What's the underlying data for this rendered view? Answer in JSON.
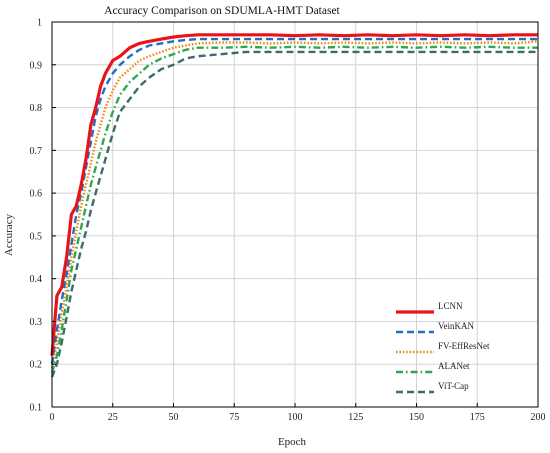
{
  "chart_data": {
    "type": "line",
    "title": "Accuracy Comparison on SDUMLA-HMT Dataset",
    "xlabel": "Epoch",
    "ylabel": "Accuracy",
    "xlim": [
      0,
      200
    ],
    "ylim": [
      0.1,
      1.0
    ],
    "xticks": [
      0,
      25,
      50,
      75,
      100,
      125,
      150,
      175,
      200
    ],
    "yticks": [
      0.1,
      0.2,
      0.3,
      0.4,
      0.5,
      0.6,
      0.7,
      0.8,
      0.9,
      1
    ],
    "grid": true,
    "legend_position": "bottom-right",
    "series": [
      {
        "name": "LCNN",
        "color": "#e8141a",
        "style": "solid",
        "x": [
          0,
          2,
          4,
          6,
          8,
          10,
          12,
          14,
          16,
          18,
          20,
          22,
          25,
          28,
          32,
          36,
          40,
          45,
          50,
          55,
          60,
          70,
          80,
          90,
          100,
          110,
          120,
          130,
          140,
          150,
          160,
          170,
          180,
          190,
          200
        ],
        "y": [
          0.22,
          0.36,
          0.38,
          0.45,
          0.55,
          0.57,
          0.62,
          0.68,
          0.76,
          0.8,
          0.85,
          0.88,
          0.91,
          0.92,
          0.94,
          0.95,
          0.955,
          0.96,
          0.965,
          0.968,
          0.97,
          0.97,
          0.97,
          0.97,
          0.968,
          0.97,
          0.968,
          0.97,
          0.968,
          0.97,
          0.968,
          0.97,
          0.968,
          0.97,
          0.97
        ]
      },
      {
        "name": "VeinKAN",
        "color": "#1f6fc4",
        "style": "dashed",
        "x": [
          0,
          2,
          4,
          6,
          8,
          10,
          12,
          14,
          16,
          18,
          20,
          22,
          25,
          28,
          32,
          36,
          40,
          45,
          50,
          55,
          60,
          70,
          80,
          90,
          100,
          110,
          120,
          130,
          140,
          150,
          160,
          170,
          180,
          190,
          200
        ],
        "y": [
          0.2,
          0.28,
          0.35,
          0.41,
          0.48,
          0.55,
          0.6,
          0.66,
          0.72,
          0.78,
          0.82,
          0.85,
          0.88,
          0.9,
          0.92,
          0.935,
          0.945,
          0.95,
          0.955,
          0.958,
          0.96,
          0.96,
          0.96,
          0.96,
          0.96,
          0.96,
          0.96,
          0.96,
          0.96,
          0.96,
          0.96,
          0.96,
          0.96,
          0.96,
          0.96
        ]
      },
      {
        "name": "FV-EffResNet",
        "color": "#ef8a1a",
        "style": "dotted",
        "x": [
          0,
          2,
          4,
          6,
          8,
          10,
          12,
          14,
          16,
          18,
          20,
          22,
          25,
          28,
          32,
          36,
          40,
          45,
          50,
          55,
          60,
          70,
          80,
          90,
          100,
          110,
          120,
          130,
          140,
          150,
          160,
          170,
          180,
          190,
          200
        ],
        "y": [
          0.19,
          0.25,
          0.32,
          0.38,
          0.45,
          0.51,
          0.57,
          0.62,
          0.67,
          0.72,
          0.76,
          0.8,
          0.84,
          0.87,
          0.89,
          0.91,
          0.92,
          0.93,
          0.94,
          0.945,
          0.95,
          0.952,
          0.952,
          0.95,
          0.952,
          0.95,
          0.952,
          0.95,
          0.952,
          0.95,
          0.952,
          0.95,
          0.952,
          0.95,
          0.955
        ]
      },
      {
        "name": "ALANet",
        "color": "#2ea84b",
        "style": "dashdot",
        "x": [
          0,
          2,
          4,
          6,
          8,
          10,
          12,
          14,
          16,
          18,
          20,
          22,
          25,
          28,
          32,
          36,
          40,
          45,
          50,
          55,
          60,
          70,
          80,
          90,
          100,
          110,
          120,
          130,
          140,
          150,
          160,
          170,
          180,
          190,
          200
        ],
        "y": [
          0.18,
          0.22,
          0.28,
          0.35,
          0.42,
          0.47,
          0.52,
          0.57,
          0.62,
          0.66,
          0.7,
          0.74,
          0.79,
          0.83,
          0.86,
          0.88,
          0.9,
          0.915,
          0.925,
          0.935,
          0.94,
          0.94,
          0.942,
          0.94,
          0.942,
          0.94,
          0.942,
          0.94,
          0.942,
          0.94,
          0.942,
          0.94,
          0.942,
          0.94,
          0.94
        ]
      },
      {
        "name": "ViT-Cap",
        "color": "#3d6b6b",
        "style": "dashed",
        "x": [
          0,
          2,
          4,
          6,
          8,
          10,
          12,
          14,
          16,
          18,
          20,
          22,
          25,
          28,
          32,
          36,
          40,
          45,
          50,
          55,
          60,
          70,
          80,
          90,
          100,
          110,
          120,
          130,
          140,
          150,
          160,
          170,
          180,
          190,
          200
        ],
        "y": [
          0.17,
          0.2,
          0.25,
          0.31,
          0.37,
          0.42,
          0.47,
          0.51,
          0.56,
          0.6,
          0.64,
          0.68,
          0.74,
          0.79,
          0.82,
          0.85,
          0.87,
          0.89,
          0.9,
          0.915,
          0.92,
          0.925,
          0.93,
          0.93,
          0.93,
          0.93,
          0.93,
          0.93,
          0.93,
          0.93,
          0.93,
          0.93,
          0.93,
          0.93,
          0.93
        ]
      }
    ]
  }
}
